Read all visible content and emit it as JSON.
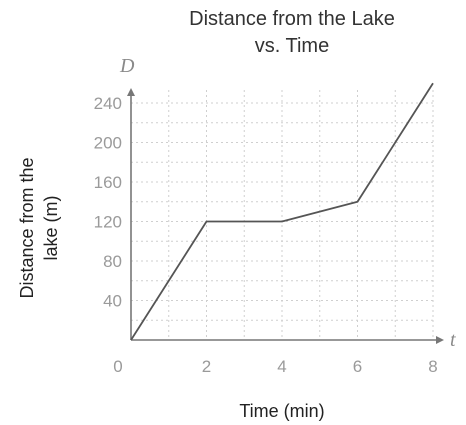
{
  "chart_data": {
    "type": "line",
    "title_lines": [
      "Distance from the Lake",
      "vs. Time"
    ],
    "xlabel": "Time (min)",
    "ylabel_lines": [
      "Distance from the",
      "lake (m)"
    ],
    "x_var": "t",
    "y_var": "D",
    "origin_label": "0",
    "xlim": [
      0,
      8
    ],
    "ylim": [
      0,
      240
    ],
    "x_ticks": [
      2,
      4,
      6,
      8
    ],
    "y_ticks": [
      40,
      80,
      120,
      160,
      200,
      240
    ],
    "grid": true,
    "series": [
      {
        "x": [
          0,
          2,
          4,
          6,
          8
        ],
        "y": [
          0,
          120,
          120,
          140,
          260
        ]
      }
    ]
  }
}
